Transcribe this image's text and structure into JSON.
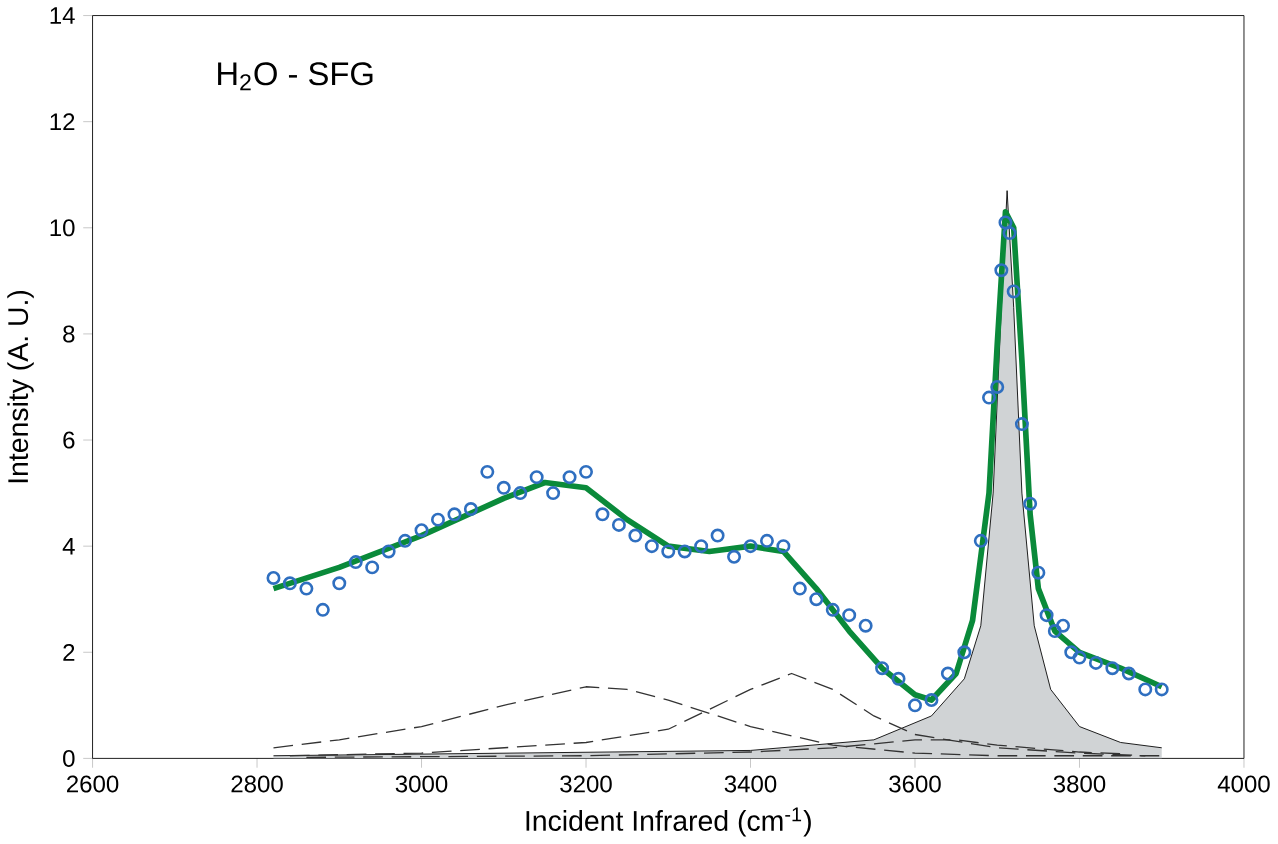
{
  "chart_data": {
    "type": "scatter",
    "title": "H$_{2}$O - SFG",
    "xlabel": "Incident Infrared (cm$^{-1}$)",
    "ylabel": "Intensity (A. U.)",
    "xlim": [
      2600,
      4000
    ],
    "ylim": [
      0,
      14
    ],
    "xticks": [
      2600,
      2800,
      3000,
      3200,
      3400,
      3600,
      3800,
      4000
    ],
    "yticks": [
      0,
      2,
      4,
      6,
      8,
      10,
      12,
      14
    ],
    "grid": false,
    "series": [
      {
        "type": "area",
        "color": "#d0d3d5",
        "x": [
          2820,
          3400,
          3550,
          3620,
          3660,
          3680,
          3695,
          3705,
          3712,
          3720,
          3730,
          3745,
          3765,
          3800,
          3850,
          3900
        ],
        "values": [
          0.05,
          0.15,
          0.35,
          0.8,
          1.5,
          2.5,
          5,
          8.5,
          10.7,
          8.5,
          5,
          2.5,
          1.3,
          0.6,
          0.3,
          0.2
        ]
      },
      {
        "type": "line",
        "line_style": "dashed",
        "marker": "none",
        "color": "#333333",
        "x": [
          2820,
          2900,
          3000,
          3100,
          3200,
          3250,
          3300,
          3400,
          3500,
          3600,
          3700,
          3900
        ],
        "values": [
          0.2,
          0.35,
          0.6,
          1.0,
          1.35,
          1.3,
          1.1,
          0.6,
          0.25,
          0.1,
          0.05,
          0.05
        ]
      },
      {
        "type": "line",
        "line_style": "dashed",
        "marker": "none",
        "color": "#333333",
        "x": [
          2840,
          3000,
          3200,
          3300,
          3400,
          3450,
          3500,
          3550,
          3600,
          3700,
          3800,
          3880
        ],
        "values": [
          0.05,
          0.1,
          0.3,
          0.55,
          1.3,
          1.6,
          1.3,
          0.8,
          0.45,
          0.2,
          0.1,
          0.05
        ]
      },
      {
        "type": "line",
        "line_style": "dashed",
        "marker": "none",
        "color": "#333333",
        "x": [
          2860,
          3200,
          3400,
          3500,
          3600,
          3650,
          3700,
          3800,
          3860
        ],
        "values": [
          0.02,
          0.05,
          0.12,
          0.2,
          0.35,
          0.35,
          0.25,
          0.12,
          0.08
        ]
      },
      {
        "marker": "circle",
        "color": "#2f6fc0",
        "x": [
          2820,
          2840,
          2860,
          2880,
          2900,
          2920,
          2940,
          2960,
          2980,
          3000,
          3020,
          3040,
          3060,
          3080,
          3100,
          3120,
          3140,
          3160,
          3180,
          3200,
          3220,
          3240,
          3260,
          3280,
          3300,
          3320,
          3340,
          3360,
          3380,
          3400,
          3420,
          3440,
          3460,
          3480,
          3500,
          3520,
          3540,
          3560,
          3580,
          3600,
          3620,
          3640,
          3660,
          3680,
          3690,
          3700,
          3705,
          3710,
          3715,
          3720,
          3730,
          3740,
          3750,
          3760,
          3770,
          3780,
          3790,
          3800,
          3820,
          3840,
          3860,
          3880,
          3900
        ],
        "values": [
          3.4,
          3.3,
          3.2,
          2.8,
          3.3,
          3.7,
          3.6,
          3.9,
          4.1,
          4.3,
          4.5,
          4.6,
          4.7,
          5.4,
          5.1,
          5.0,
          5.3,
          5.0,
          5.3,
          5.4,
          4.6,
          4.4,
          4.2,
          4.0,
          3.9,
          3.9,
          4.0,
          4.2,
          3.8,
          4.0,
          4.1,
          4.0,
          3.2,
          3.0,
          2.8,
          2.7,
          2.5,
          1.7,
          1.5,
          1.0,
          1.1,
          1.6,
          2.0,
          4.1,
          6.8,
          7.0,
          9.2,
          10.1,
          9.9,
          8.8,
          6.3,
          4.8,
          3.5,
          2.7,
          2.4,
          2.5,
          2.0,
          1.9,
          1.8,
          1.7,
          1.6,
          1.3,
          1.3
        ]
      },
      {
        "type": "line",
        "line_style": "solid",
        "marker": "none",
        "color": "#0a8a3a",
        "x": [
          2820,
          2900,
          3000,
          3100,
          3150,
          3200,
          3250,
          3300,
          3350,
          3400,
          3440,
          3480,
          3520,
          3560,
          3600,
          3620,
          3650,
          3670,
          3690,
          3700,
          3710,
          3720,
          3730,
          3740,
          3750,
          3770,
          3800,
          3850,
          3900
        ],
        "values": [
          3.2,
          3.6,
          4.2,
          4.9,
          5.2,
          5.1,
          4.5,
          4.0,
          3.9,
          4.0,
          3.9,
          3.2,
          2.4,
          1.7,
          1.2,
          1.1,
          1.6,
          2.6,
          5.0,
          7.8,
          10.3,
          10.0,
          7.5,
          4.6,
          3.2,
          2.4,
          2.0,
          1.7,
          1.35
        ]
      }
    ]
  }
}
